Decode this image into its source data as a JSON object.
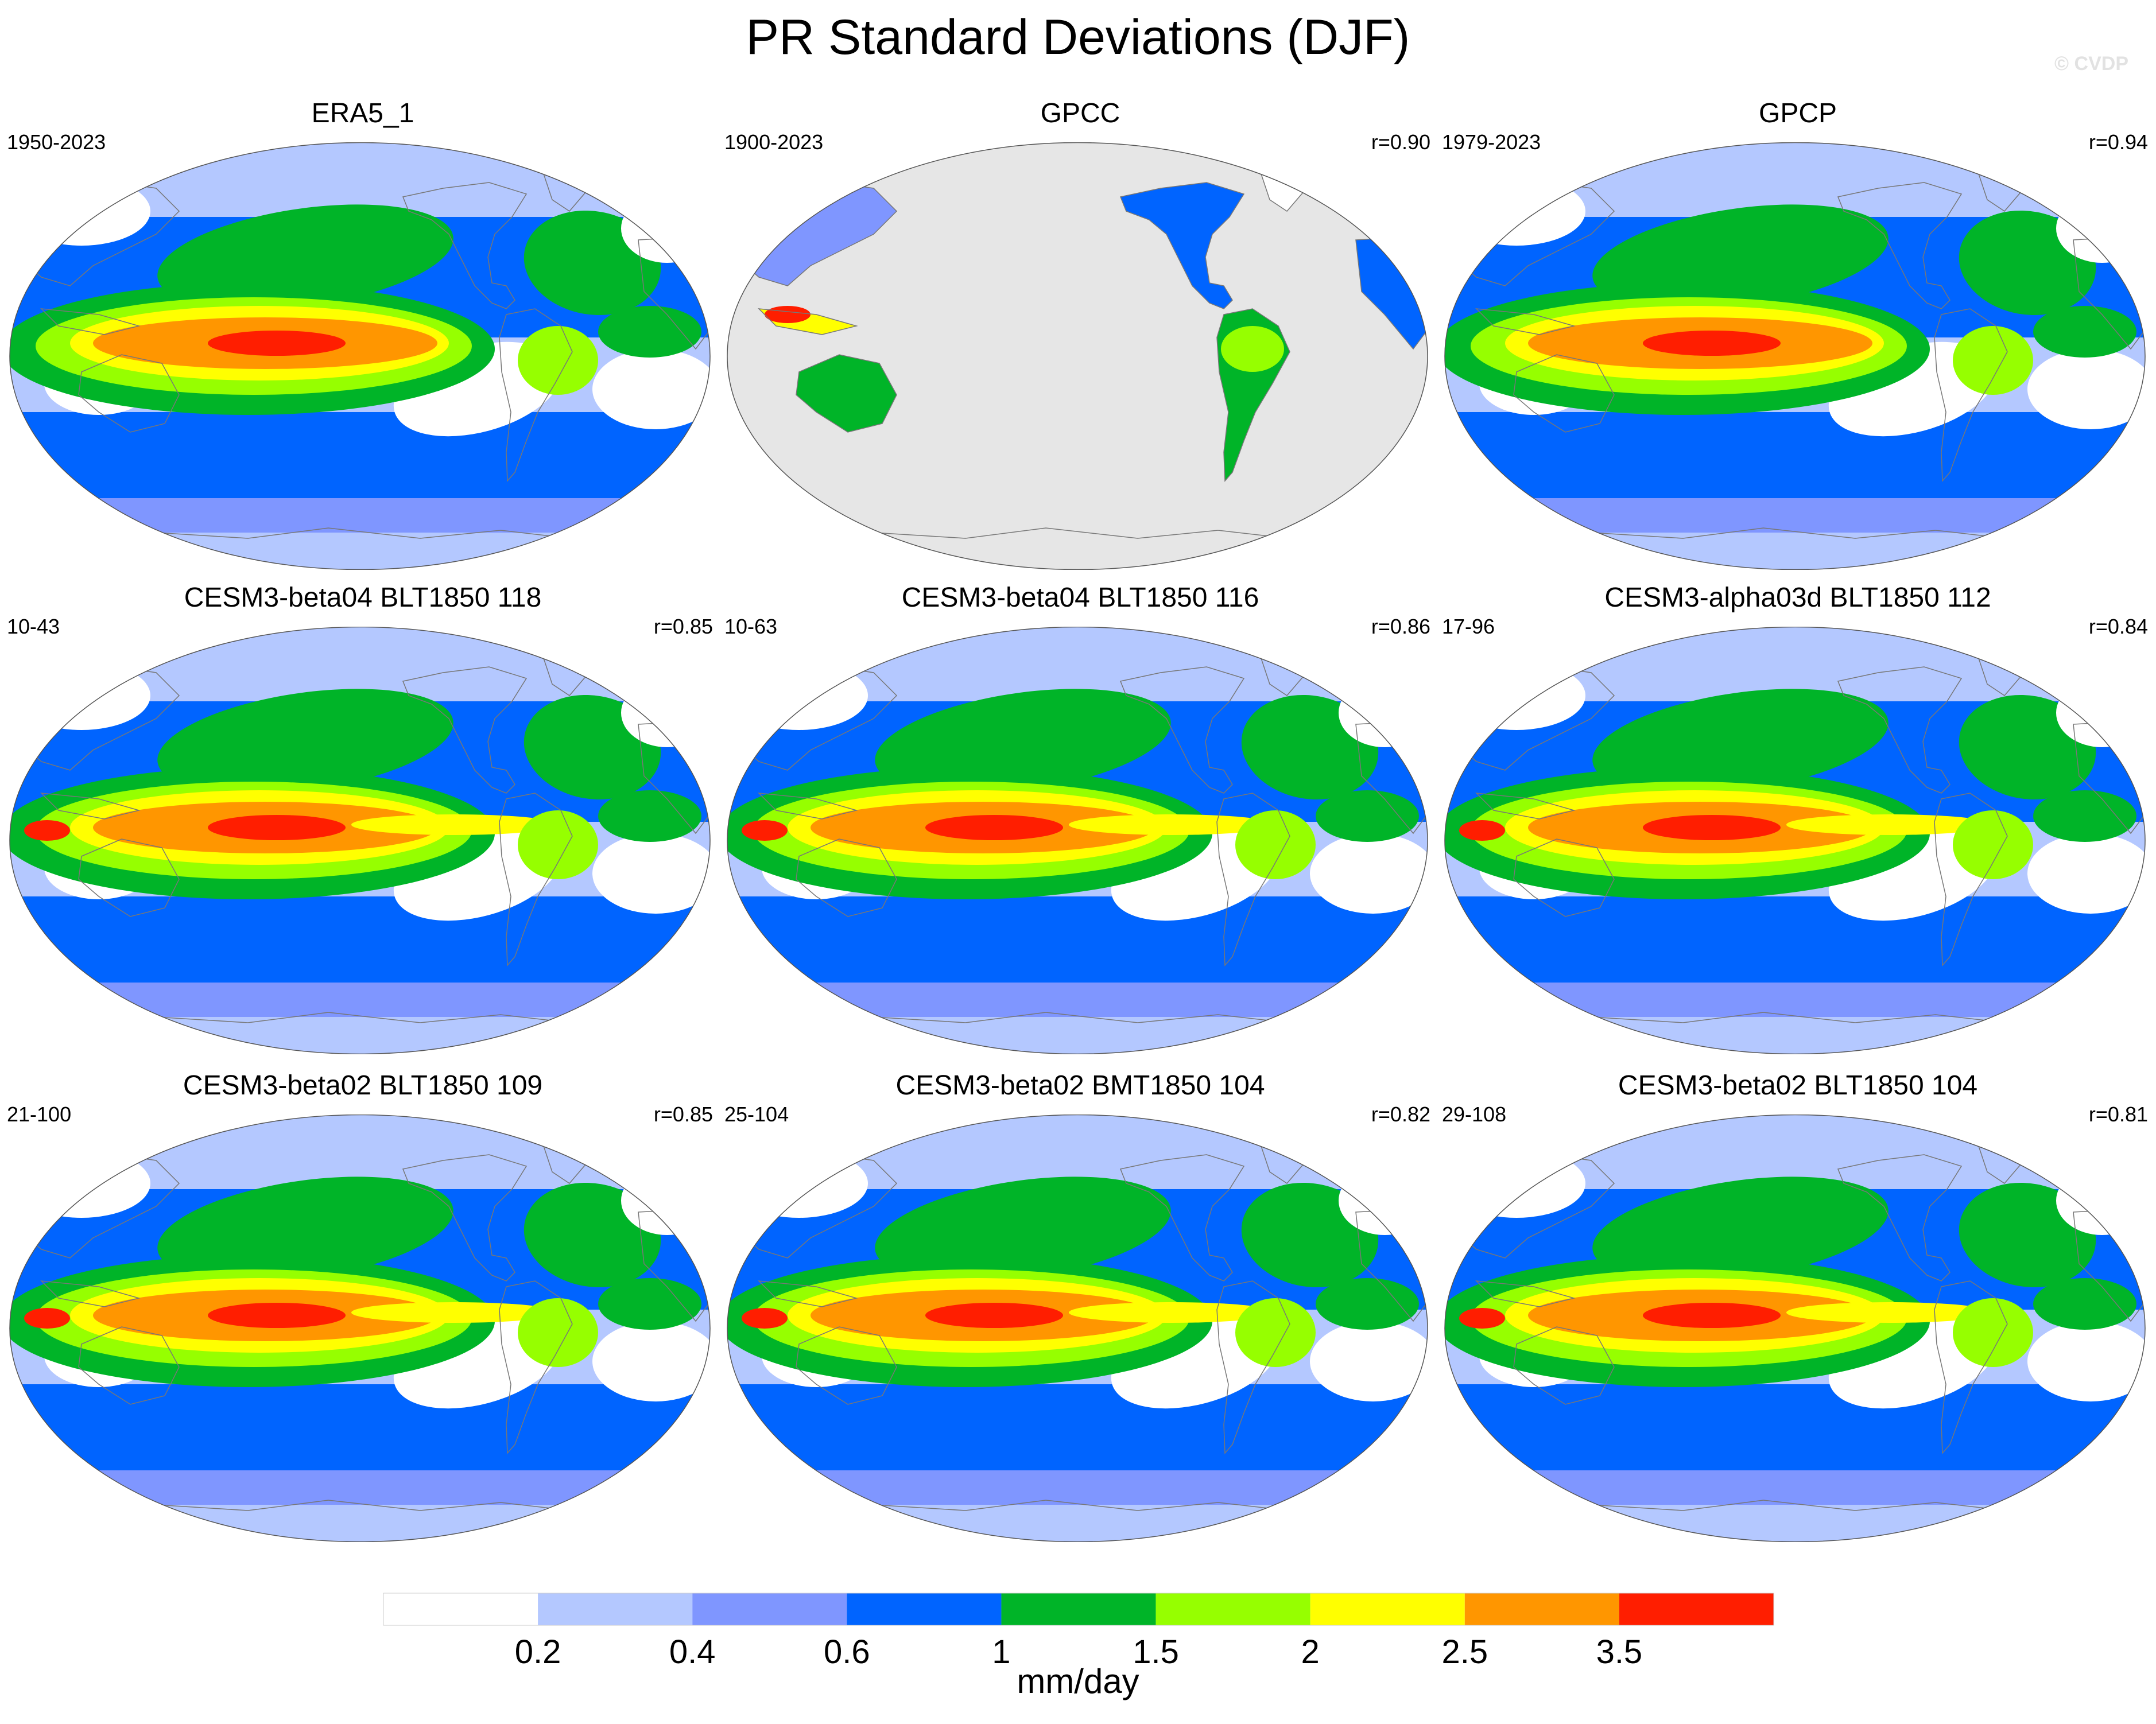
{
  "title": "PR Standard Deviations (DJF)",
  "watermark": "© CVDP",
  "panels": [
    {
      "name": "ERA5_1",
      "period": "1950-2023",
      "corr": "",
      "kind": "obs-era5"
    },
    {
      "name": "GPCC",
      "period": "1900-2023",
      "corr": "r=0.90",
      "kind": "land-only"
    },
    {
      "name": "GPCP",
      "period": "1979-2023",
      "corr": "r=0.94",
      "kind": "obs-gpcp"
    },
    {
      "name": "CESM3-beta04 BLT1850 118",
      "period": "10-43",
      "corr": "r=0.85",
      "kind": "model"
    },
    {
      "name": "CESM3-beta04 BLT1850 116",
      "period": "10-63",
      "corr": "r=0.86",
      "kind": "model"
    },
    {
      "name": "CESM3-alpha03d BLT1850 112",
      "period": "17-96",
      "corr": "r=0.84",
      "kind": "model"
    },
    {
      "name": "CESM3-beta02 BLT1850 109",
      "period": "21-100",
      "corr": "r=0.85",
      "kind": "model"
    },
    {
      "name": "CESM3-beta02 BMT1850 104",
      "period": "25-104",
      "corr": "r=0.82",
      "kind": "model"
    },
    {
      "name": "CESM3-beta02 BLT1850 104",
      "period": "29-108",
      "corr": "r=0.81",
      "kind": "model"
    }
  ],
  "colorbar": {
    "labels": [
      "0.2",
      "0.4",
      "0.6",
      "1",
      "1.5",
      "2",
      "2.5",
      "3.5"
    ],
    "colors": [
      "#ffffff",
      "#b4c8ff",
      "#7f96ff",
      "#0064ff",
      "#00b428",
      "#96ff00",
      "#ffff00",
      "#ff9600",
      "#ff1e00"
    ],
    "units": "mm/day"
  },
  "missing_color": "#e6e6e6"
}
